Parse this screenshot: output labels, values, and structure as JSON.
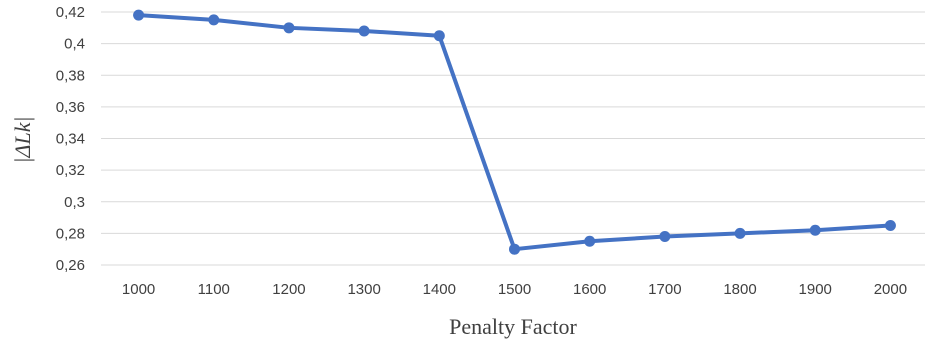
{
  "chart_data": {
    "type": "line",
    "xlabel": "Penalty Factor",
    "ylabel": "|ΔLk|",
    "categories": [
      "1000",
      "1100",
      "1200",
      "1300",
      "1400",
      "1500",
      "1600",
      "1700",
      "1800",
      "1900",
      "2000"
    ],
    "series": [
      {
        "values": [
          0.418,
          0.415,
          0.41,
          0.408,
          0.405,
          0.27,
          0.275,
          0.278,
          0.28,
          0.282,
          0.285
        ],
        "color": "#4472c4"
      }
    ],
    "ylim": [
      0.26,
      0.42
    ],
    "yticks": [
      0.26,
      0.28,
      0.3,
      0.32,
      0.34,
      0.36,
      0.38,
      0.4,
      0.42
    ],
    "ytick_labels": [
      "0,26",
      "0,28",
      "0,3",
      "0,32",
      "0,34",
      "0,36",
      "0,38",
      "0,4",
      "0,42"
    ],
    "grid": true,
    "legend": "none"
  }
}
